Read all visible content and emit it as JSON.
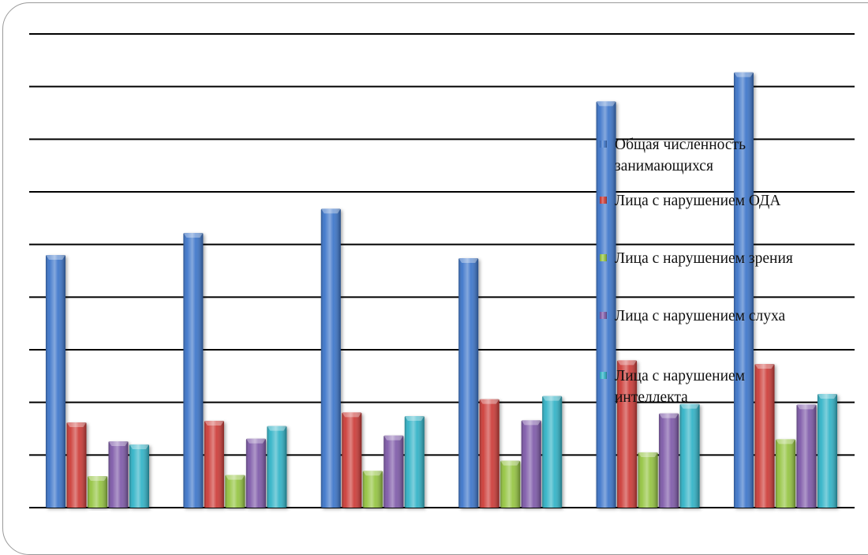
{
  "chart_data": {
    "type": "bar",
    "title": "",
    "xlabel": "",
    "ylabel": "",
    "categories": [
      "",
      "",
      "",
      "",
      "",
      ""
    ],
    "ylim": [
      0,
      900
    ],
    "grid": true,
    "legend_position": "right",
    "series": [
      {
        "name": "Общая численность занимающихся",
        "color": "#3b74c9",
        "values": [
          480,
          522,
          568,
          474,
          772,
          827
        ]
      },
      {
        "name": "Лица с нарушением ОДА",
        "color": "#cc3a36",
        "values": [
          162,
          165,
          181,
          206,
          280,
          273
        ]
      },
      {
        "name": "Лица с нарушением зрения",
        "color": "#94c440",
        "values": [
          60,
          62,
          70,
          89,
          105,
          130
        ]
      },
      {
        "name": "Лица с нарушением слуха",
        "color": "#7d58a8",
        "values": [
          126,
          131,
          137,
          166,
          179,
          196
        ]
      },
      {
        "name": "Лица с нарушением интеллекта",
        "color": "#2fb2c6",
        "values": [
          120,
          155,
          174,
          212,
          197,
          216
        ]
      }
    ]
  }
}
